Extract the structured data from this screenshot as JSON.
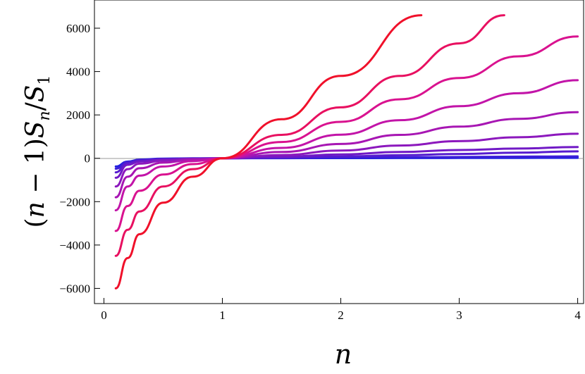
{
  "chart_data": {
    "type": "line",
    "title": "",
    "xlabel": "n",
    "ylabel": "(n − 1)S_n/S_1",
    "ylabel_parts": {
      "open": "(",
      "n": "n",
      "minus": " − 1)",
      "S": "S",
      "sub_n": "n",
      "slash": "/",
      "S2": "S",
      "sub_1": "1"
    },
    "xlim": [
      -0.08,
      4.05
    ],
    "ylim": [
      -6700,
      7300
    ],
    "x_ticks": [
      0,
      1,
      2,
      3,
      4
    ],
    "x_tick_labels": [
      "0",
      "1",
      "2",
      "3",
      "4"
    ],
    "y_ticks": [
      -6000,
      -4000,
      -2000,
      0,
      2000,
      4000,
      6000
    ],
    "y_tick_labels": [
      "−6000",
      "−4000",
      "−2000",
      "0",
      "2000",
      "4000",
      "6000"
    ],
    "grid": false,
    "legend": "none",
    "x_sample": [
      0.1,
      0.2,
      0.3,
      0.5,
      0.75,
      1.0,
      1.5,
      2.0,
      2.5,
      3.0,
      3.5,
      4.0
    ],
    "series": [
      {
        "color": "#2020e0",
        "values": [
          -380,
          -150,
          -60,
          -15,
          -3,
          0,
          3,
          8,
          12,
          15,
          18,
          21
        ]
      },
      {
        "color": "#3b1ed8",
        "values": [
          -480,
          -170,
          -75,
          -25,
          -7,
          0,
          12,
          30,
          46,
          60,
          75,
          90
        ]
      },
      {
        "color": "#561ccf",
        "values": [
          -650,
          -210,
          -100,
          -40,
          -12,
          0,
          35,
          85,
          140,
          200,
          260,
          320
        ]
      },
      {
        "color": "#711ac6",
        "values": [
          -900,
          -300,
          -150,
          -60,
          -20,
          0,
          70,
          180,
          290,
          380,
          450,
          520
        ]
      },
      {
        "color": "#8c18bd",
        "values": [
          -1300,
          -500,
          -250,
          -110,
          -35,
          0,
          150,
          360,
          590,
          790,
          970,
          1130
        ]
      },
      {
        "color": "#a716b3",
        "values": [
          -1800,
          -850,
          -460,
          -200,
          -65,
          0,
          290,
          660,
          1080,
          1460,
          1820,
          2130
        ]
      },
      {
        "color": "#c214a8",
        "values": [
          -2400,
          -1300,
          -800,
          -380,
          -130,
          0,
          480,
          1090,
          1760,
          2400,
          3000,
          3600
        ]
      },
      {
        "color": "#d9128f",
        "values": [
          -3350,
          -2200,
          -1500,
          -750,
          -270,
          0,
          750,
          1680,
          2720,
          3700,
          4700,
          5620
        ]
      },
      {
        "color": "#e81060",
        "values": [
          -4500,
          -3300,
          -2450,
          -1300,
          -500,
          0,
          1080,
          2350,
          3800,
          5300,
          6600
        ]
      },
      {
        "color": "#f0102a",
        "values": [
          -6000,
          -4600,
          -3500,
          -2050,
          -850,
          0,
          1800,
          3800,
          5800
        ]
      }
    ],
    "series_endpoints_x": [
      4.0,
      4.0,
      4.0,
      4.0,
      4.0,
      4.0,
      4.0,
      4.0,
      3.38,
      2.68
    ],
    "series_endpoints_y": [
      21,
      90,
      320,
      520,
      1130,
      2130,
      3600,
      5620,
      6600,
      6600
    ]
  }
}
